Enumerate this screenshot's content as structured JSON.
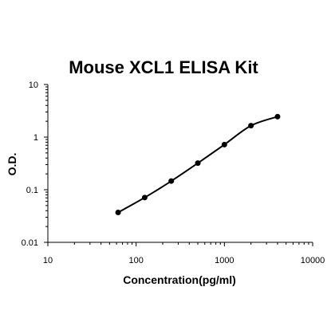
{
  "chart_data": {
    "type": "line",
    "title": "Mouse XCL1 ELISA Kit",
    "xlabel": "Concentration(pg/ml)",
    "ylabel": "O.D.",
    "x_scale": "log",
    "y_scale": "log",
    "xlim": [
      10,
      10000
    ],
    "ylim": [
      0.01,
      10
    ],
    "x_ticks": [
      10,
      100,
      1000,
      10000
    ],
    "x_tick_labels": [
      "10",
      "100",
      "1000",
      "10000"
    ],
    "y_ticks": [
      0.01,
      0.1,
      1,
      10
    ],
    "y_tick_labels": [
      "0.01",
      "0.1",
      "1",
      "10"
    ],
    "grid": false,
    "legend": "none",
    "series": [
      {
        "x": [
          62.5,
          125,
          250,
          500,
          1000,
          2000,
          4000
        ],
        "y": [
          0.037,
          0.071,
          0.146,
          0.32,
          0.72,
          1.65,
          2.45
        ],
        "color": "#000000"
      }
    ]
  }
}
